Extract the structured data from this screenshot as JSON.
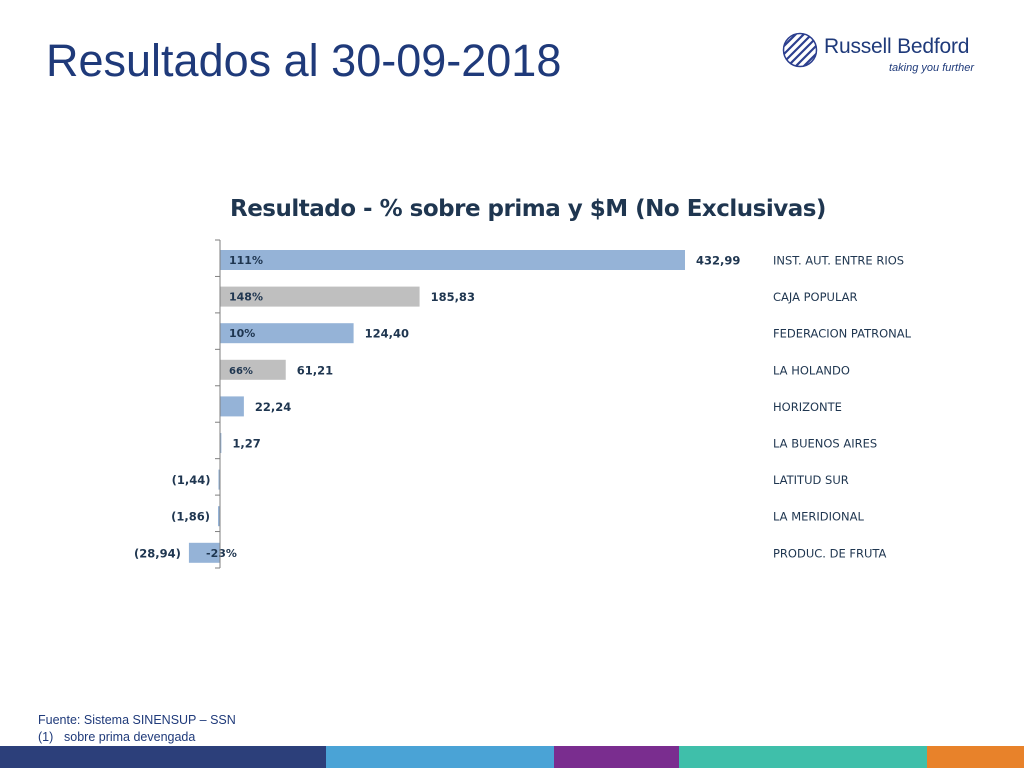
{
  "page": {
    "title": "Resultados al 30-09-2018",
    "logo": {
      "name": "Russell Bedford",
      "tagline": "taking you further"
    },
    "footnotes": {
      "source": "Fuente: Sistema SINENSUP – SSN",
      "note_number": "(1)",
      "note_text": "sobre prima devengada"
    },
    "footer_colors": [
      "#2c3f7a",
      "#4aa3d6",
      "#7a2d8f",
      "#3fbfaa",
      "#e8822a"
    ]
  },
  "colors": {
    "blue_bar": "#95b3d7",
    "gray_bar": "#bfbfbf",
    "axis": "#7f7f7f",
    "text": "#1f3650"
  },
  "chart_data": {
    "type": "bar",
    "orientation": "horizontal",
    "title": "Resultado  - % sobre prima y $M  (No Exclusivas)",
    "categories": [
      "INST. AUT. ENTRE RIOS",
      "CAJA POPULAR",
      "FEDERACION PATRONAL",
      "LA HOLANDO",
      "HORIZONTE",
      "LA BUENOS AIRES",
      "LATITUD SUR",
      "LA MERIDIONAL",
      "PRODUC. DE FRUTA"
    ],
    "values": [
      432.99,
      185.83,
      124.4,
      61.21,
      22.24,
      1.27,
      -1.44,
      -1.86,
      -28.94
    ],
    "value_labels": [
      "432,99",
      "185,83",
      "124,40",
      "61,21",
      "22,24",
      "1,27",
      "(1,44)",
      "(1,86)",
      "(28,94)"
    ],
    "percent_labels": [
      "111%",
      "148%",
      "10%",
      "66%",
      "",
      "",
      "",
      "",
      "-23%"
    ],
    "bar_colors": [
      "blue",
      "gray",
      "blue",
      "gray",
      "blue",
      "blue",
      "blue",
      "blue",
      "blue"
    ]
  }
}
